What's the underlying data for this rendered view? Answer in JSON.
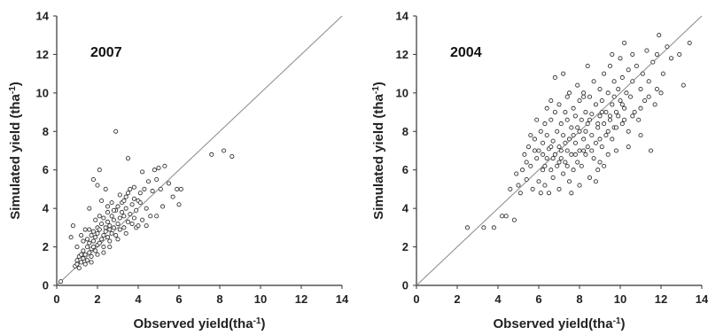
{
  "chart_data": [
    {
      "type": "scatter",
      "annotation": "2007",
      "xlabel": "Observed yield(tha",
      "xlabel_sup": "-1",
      "xlabel_suffix": ")",
      "ylabel": "Simulated yield (tha",
      "ylabel_sup": "-1",
      "ylabel_suffix": ")",
      "xlim": [
        0,
        14
      ],
      "ylim": [
        0,
        14
      ],
      "xticks": [
        "0",
        "2",
        "4",
        "6",
        "8",
        "10",
        "12",
        "14"
      ],
      "yticks": [
        "0",
        "2",
        "4",
        "6",
        "8",
        "10",
        "12",
        "14"
      ],
      "reference_line": "1:1",
      "points": [
        [
          0.2,
          0.2
        ],
        [
          0.9,
          1.0
        ],
        [
          1.0,
          1.1
        ],
        [
          1.0,
          1.3
        ],
        [
          1.1,
          1.5
        ],
        [
          1.2,
          1.2
        ],
        [
          1.2,
          1.6
        ],
        [
          1.3,
          1.4
        ],
        [
          1.3,
          1.8
        ],
        [
          1.4,
          1.1
        ],
        [
          1.4,
          1.6
        ],
        [
          1.5,
          1.3
        ],
        [
          1.5,
          2.0
        ],
        [
          1.5,
          2.4
        ],
        [
          1.6,
          1.7
        ],
        [
          1.6,
          2.2
        ],
        [
          1.7,
          1.5
        ],
        [
          1.7,
          1.9
        ],
        [
          1.7,
          2.6
        ],
        [
          1.8,
          2.0
        ],
        [
          1.8,
          2.3
        ],
        [
          1.8,
          2.8
        ],
        [
          1.9,
          1.8
        ],
        [
          1.9,
          2.5
        ],
        [
          2.0,
          2.1
        ],
        [
          2.0,
          2.7
        ],
        [
          2.0,
          3.0
        ],
        [
          2.1,
          2.2
        ],
        [
          2.1,
          2.9
        ],
        [
          2.2,
          2.4
        ],
        [
          2.2,
          3.2
        ],
        [
          2.3,
          2.0
        ],
        [
          2.3,
          2.6
        ],
        [
          2.3,
          3.5
        ],
        [
          2.4,
          2.8
        ],
        [
          2.4,
          3.0
        ],
        [
          2.5,
          2.5
        ],
        [
          2.5,
          3.3
        ],
        [
          2.5,
          3.8
        ],
        [
          2.6,
          2.9
        ],
        [
          2.6,
          3.1
        ],
        [
          2.7,
          2.7
        ],
        [
          2.7,
          3.6
        ],
        [
          2.8,
          3.0
        ],
        [
          2.8,
          3.4
        ],
        [
          2.9,
          2.6
        ],
        [
          2.9,
          3.9
        ],
        [
          3.0,
          3.2
        ],
        [
          3.0,
          4.1
        ],
        [
          3.1,
          2.9
        ],
        [
          3.1,
          3.5
        ],
        [
          3.2,
          3.8
        ],
        [
          3.2,
          4.3
        ],
        [
          3.3,
          3.0
        ],
        [
          3.3,
          3.6
        ],
        [
          3.4,
          4.0
        ],
        [
          3.4,
          4.6
        ],
        [
          3.5,
          3.3
        ],
        [
          3.5,
          4.8
        ],
        [
          3.6,
          3.7
        ],
        [
          3.6,
          5.0
        ],
        [
          3.7,
          4.2
        ],
        [
          3.7,
          3.2
        ],
        [
          3.8,
          4.5
        ],
        [
          3.8,
          5.1
        ],
        [
          3.9,
          3.9
        ],
        [
          3.9,
          3.0
        ],
        [
          4.0,
          4.4
        ],
        [
          4.1,
          4.8
        ],
        [
          4.2,
          3.4
        ],
        [
          4.3,
          5.0
        ],
        [
          4.4,
          4.0
        ],
        [
          4.5,
          5.4
        ],
        [
          4.6,
          3.6
        ],
        [
          4.7,
          4.9
        ],
        [
          4.8,
          6.0
        ],
        [
          4.9,
          5.5
        ],
        [
          5.0,
          6.1
        ],
        [
          5.1,
          5.0
        ],
        [
          5.3,
          6.2
        ],
        [
          5.5,
          5.3
        ],
        [
          5.7,
          4.6
        ],
        [
          5.9,
          5.0
        ],
        [
          6.0,
          4.2
        ],
        [
          6.1,
          5.0
        ],
        [
          2.0,
          5.2
        ],
        [
          2.1,
          6.0
        ],
        [
          1.8,
          5.5
        ],
        [
          2.4,
          5.0
        ],
        [
          2.9,
          8.0
        ],
        [
          3.5,
          6.6
        ],
        [
          4.2,
          5.9
        ],
        [
          0.8,
          3.1
        ],
        [
          0.7,
          2.5
        ],
        [
          1.0,
          2.0
        ],
        [
          1.2,
          2.6
        ],
        [
          7.6,
          6.8
        ],
        [
          8.2,
          7.0
        ],
        [
          8.6,
          6.7
        ],
        [
          1.6,
          4.0
        ],
        [
          2.2,
          4.4
        ],
        [
          2.7,
          4.3
        ],
        [
          3.1,
          4.7
        ],
        [
          1.4,
          2.9
        ],
        [
          1.9,
          3.4
        ],
        [
          2.6,
          2.3
        ],
        [
          3.0,
          2.4
        ],
        [
          2.3,
          1.7
        ],
        [
          1.7,
          1.2
        ],
        [
          1.1,
          0.9
        ],
        [
          4.9,
          3.6
        ],
        [
          4.4,
          3.1
        ],
        [
          5.2,
          4.1
        ],
        [
          3.8,
          3.5
        ],
        [
          4.1,
          4.3
        ],
        [
          3.3,
          4.4
        ],
        [
          2.8,
          3.9
        ],
        [
          2.5,
          4.1
        ],
        [
          2.1,
          3.6
        ],
        [
          1.6,
          2.9
        ],
        [
          1.3,
          2.3
        ],
        [
          2.0,
          1.6
        ],
        [
          2.6,
          2.0
        ],
        [
          3.4,
          2.7
        ],
        [
          4.0,
          3.1
        ]
      ]
    },
    {
      "type": "scatter",
      "annotation": "2004",
      "xlabel": "Observed yield(tha",
      "xlabel_sup": "-1",
      "xlabel_suffix": ")",
      "ylabel": "Simulated yield (tha",
      "ylabel_sup": "-1",
      "ylabel_suffix": ")",
      "xlim": [
        0,
        14
      ],
      "ylim": [
        0,
        14
      ],
      "xticks": [
        "0",
        "2",
        "4",
        "6",
        "8",
        "10",
        "12",
        "14"
      ],
      "yticks": [
        "0",
        "2",
        "4",
        "6",
        "8",
        "10",
        "12",
        "14"
      ],
      "reference_line": "1:1",
      "points": [
        [
          2.5,
          3.0
        ],
        [
          3.3,
          3.0
        ],
        [
          3.8,
          3.0
        ],
        [
          4.2,
          3.6
        ],
        [
          4.4,
          3.6
        ],
        [
          4.6,
          5.0
        ],
        [
          4.8,
          3.4
        ],
        [
          4.9,
          5.8
        ],
        [
          5.0,
          5.2
        ],
        [
          5.1,
          4.8
        ],
        [
          5.2,
          6.0
        ],
        [
          5.3,
          6.8
        ],
        [
          5.4,
          5.5
        ],
        [
          5.5,
          7.2
        ],
        [
          5.6,
          6.2
        ],
        [
          5.7,
          5.0
        ],
        [
          5.8,
          7.6
        ],
        [
          5.9,
          6.6
        ],
        [
          6.0,
          5.4
        ],
        [
          6.0,
          7.0
        ],
        [
          6.1,
          8.0
        ],
        [
          6.2,
          6.0
        ],
        [
          6.2,
          7.4
        ],
        [
          6.3,
          5.2
        ],
        [
          6.3,
          8.4
        ],
        [
          6.4,
          6.6
        ],
        [
          6.4,
          7.8
        ],
        [
          6.5,
          4.8
        ],
        [
          6.5,
          7.1
        ],
        [
          6.6,
          6.0
        ],
        [
          6.6,
          8.6
        ],
        [
          6.7,
          5.6
        ],
        [
          6.7,
          7.5
        ],
        [
          6.8,
          6.8
        ],
        [
          6.8,
          9.0
        ],
        [
          6.9,
          6.2
        ],
        [
          6.9,
          8.0
        ],
        [
          7.0,
          5.0
        ],
        [
          7.0,
          7.2
        ],
        [
          7.0,
          9.4
        ],
        [
          7.1,
          6.6
        ],
        [
          7.1,
          8.4
        ],
        [
          7.2,
          5.8
        ],
        [
          7.2,
          7.8
        ],
        [
          7.3,
          6.4
        ],
        [
          7.3,
          9.0
        ],
        [
          7.4,
          7.0
        ],
        [
          7.4,
          8.6
        ],
        [
          7.5,
          5.4
        ],
        [
          7.5,
          7.6
        ],
        [
          7.5,
          10.0
        ],
        [
          7.6,
          6.8
        ],
        [
          7.6,
          8.2
        ],
        [
          7.7,
          6.0
        ],
        [
          7.7,
          9.2
        ],
        [
          7.8,
          7.4
        ],
        [
          7.8,
          8.8
        ],
        [
          7.9,
          6.4
        ],
        [
          7.9,
          10.4
        ],
        [
          8.0,
          7.0
        ],
        [
          8.0,
          8.0
        ],
        [
          8.0,
          9.6
        ],
        [
          8.1,
          6.2
        ],
        [
          8.1,
          8.6
        ],
        [
          8.2,
          7.6
        ],
        [
          8.2,
          10.0
        ],
        [
          8.3,
          6.8
        ],
        [
          8.3,
          9.0
        ],
        [
          8.4,
          7.2
        ],
        [
          8.4,
          8.4
        ],
        [
          8.5,
          5.6
        ],
        [
          8.5,
          9.8
        ],
        [
          8.6,
          7.8
        ],
        [
          8.6,
          8.9
        ],
        [
          8.7,
          6.6
        ],
        [
          8.7,
          10.6
        ],
        [
          8.8,
          7.4
        ],
        [
          8.8,
          9.4
        ],
        [
          8.9,
          8.2
        ],
        [
          8.9,
          6.0
        ],
        [
          9.0,
          8.8
        ],
        [
          9.0,
          10.2
        ],
        [
          9.1,
          7.2
        ],
        [
          9.1,
          9.6
        ],
        [
          9.2,
          8.4
        ],
        [
          9.2,
          11.0
        ],
        [
          9.3,
          7.8
        ],
        [
          9.3,
          9.0
        ],
        [
          9.4,
          6.8
        ],
        [
          9.4,
          10.0
        ],
        [
          9.5,
          8.6
        ],
        [
          9.5,
          11.4
        ],
        [
          9.6,
          7.6
        ],
        [
          9.6,
          9.4
        ],
        [
          9.7,
          8.2
        ],
        [
          9.7,
          10.6
        ],
        [
          9.8,
          9.0
        ],
        [
          9.8,
          7.0
        ],
        [
          9.9,
          10.2
        ],
        [
          9.9,
          8.8
        ],
        [
          10.0,
          9.6
        ],
        [
          10.0,
          11.8
        ],
        [
          10.1,
          8.4
        ],
        [
          10.1,
          10.8
        ],
        [
          10.2,
          12.6
        ],
        [
          10.2,
          9.2
        ],
        [
          10.3,
          10.0
        ],
        [
          10.4,
          8.0
        ],
        [
          10.4,
          11.2
        ],
        [
          10.5,
          9.8
        ],
        [
          10.6,
          10.6
        ],
        [
          10.6,
          12.0
        ],
        [
          10.7,
          9.0
        ],
        [
          10.8,
          11.4
        ],
        [
          10.9,
          8.6
        ],
        [
          11.0,
          10.2
        ],
        [
          11.0,
          7.8
        ],
        [
          11.1,
          11.0
        ],
        [
          11.2,
          9.6
        ],
        [
          11.3,
          12.2
        ],
        [
          11.4,
          10.6
        ],
        [
          11.5,
          7.0
        ],
        [
          11.6,
          11.6
        ],
        [
          11.7,
          9.4
        ],
        [
          11.8,
          12.0
        ],
        [
          11.9,
          13.0
        ],
        [
          12.0,
          10.0
        ],
        [
          12.1,
          11.0
        ],
        [
          12.3,
          12.4
        ],
        [
          12.5,
          11.8
        ],
        [
          12.9,
          12.0
        ],
        [
          13.1,
          10.4
        ],
        [
          13.4,
          12.6
        ],
        [
          5.6,
          7.8
        ],
        [
          5.9,
          8.6
        ],
        [
          6.1,
          4.8
        ],
        [
          6.4,
          9.2
        ],
        [
          6.8,
          10.8
        ],
        [
          7.2,
          11.0
        ],
        [
          7.6,
          4.8
        ],
        [
          8.0,
          5.2
        ],
        [
          8.4,
          11.4
        ],
        [
          8.8,
          5.4
        ],
        [
          9.2,
          6.2
        ],
        [
          9.6,
          12.0
        ],
        [
          10.4,
          7.2
        ],
        [
          6.6,
          9.6
        ],
        [
          7.4,
          9.8
        ],
        [
          8.2,
          9.8
        ],
        [
          9.0,
          6.4
        ],
        [
          5.4,
          6.4
        ],
        [
          5.8,
          7.0
        ],
        [
          6.2,
          6.8
        ],
        [
          6.6,
          7.2
        ],
        [
          7.0,
          6.4
        ],
        [
          7.4,
          6.2
        ],
        [
          7.8,
          6.8
        ],
        [
          8.2,
          7.0
        ],
        [
          8.6,
          7.0
        ],
        [
          9.0,
          7.6
        ],
        [
          9.4,
          8.0
        ],
        [
          9.8,
          8.2
        ],
        [
          10.2,
          8.6
        ],
        [
          10.6,
          8.8
        ],
        [
          11.0,
          9.2
        ],
        [
          11.4,
          9.8
        ],
        [
          11.8,
          10.2
        ],
        [
          7.1,
          7.0
        ],
        [
          7.7,
          7.8
        ],
        [
          8.3,
          8.0
        ],
        [
          8.9,
          8.4
        ],
        [
          9.5,
          8.8
        ],
        [
          10.1,
          9.4
        ],
        [
          6.3,
          6.2
        ],
        [
          6.7,
          6.6
        ],
        [
          7.3,
          7.4
        ],
        [
          7.9,
          8.2
        ],
        [
          8.5,
          8.6
        ],
        [
          9.1,
          9.0
        ],
        [
          9.7,
          9.8
        ]
      ]
    }
  ]
}
